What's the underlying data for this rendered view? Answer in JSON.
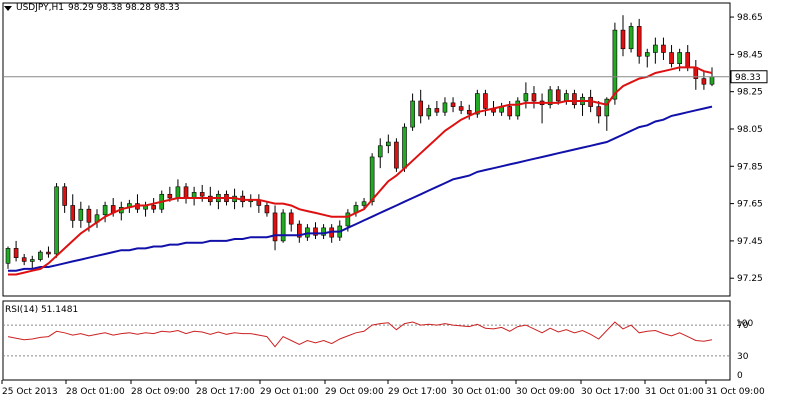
{
  "header": {
    "symbol": "USDJPY,H1",
    "ohlc": "98.29 98.38 98.28 98.33"
  },
  "price_axis": {
    "ticks": [
      "98.65",
      "98.45",
      "98.25",
      "98.05",
      "97.85",
      "97.65",
      "97.45",
      "97.25"
    ],
    "current_price_label": "98.33"
  },
  "rsi": {
    "title": "RSI(14) 51.1481",
    "ticks": [
      "70",
      "30",
      "0"
    ],
    "top_label": "100",
    "levels": [
      70,
      30
    ]
  },
  "time_axis": {
    "labels": [
      "25 Oct 2013",
      "28 Oct 01:00",
      "28 Oct 09:00",
      "28 Oct 17:00",
      "29 Oct 01:00",
      "29 Oct 09:00",
      "29 Oct 17:00",
      "30 Oct 01:00",
      "30 Oct 09:00",
      "30 Oct 17:00",
      "31 Oct 01:00",
      "31 Oct 09:00"
    ]
  },
  "colors": {
    "bull": "#22aa22",
    "bear": "#dd1111",
    "ema_fast": "#dd1111",
    "ema_slow": "#1111aa",
    "rsi_line": "#cc2222",
    "grid": "#888888"
  },
  "chart_data": {
    "type": "candlestick",
    "ylim": [
      97.16,
      98.72
    ],
    "current_price": 98.33,
    "candles": [
      [
        97.33,
        97.42,
        97.3,
        97.41
      ],
      [
        97.41,
        97.45,
        97.34,
        97.36
      ],
      [
        97.36,
        97.38,
        97.32,
        97.34
      ],
      [
        97.34,
        97.37,
        97.3,
        97.35
      ],
      [
        97.35,
        97.4,
        97.34,
        97.39
      ],
      [
        97.39,
        97.42,
        97.36,
        97.38
      ],
      [
        97.38,
        97.76,
        97.36,
        97.74
      ],
      [
        97.74,
        97.76,
        97.6,
        97.64
      ],
      [
        97.64,
        97.7,
        97.52,
        97.56
      ],
      [
        97.56,
        97.66,
        97.52,
        97.62
      ],
      [
        97.62,
        97.64,
        97.5,
        97.55
      ],
      [
        97.55,
        97.62,
        97.52,
        97.59
      ],
      [
        97.59,
        97.66,
        97.55,
        97.64
      ],
      [
        97.64,
        97.68,
        97.58,
        97.6
      ],
      [
        97.6,
        97.66,
        97.56,
        97.63
      ],
      [
        97.63,
        97.67,
        97.6,
        97.65
      ],
      [
        97.65,
        97.7,
        97.6,
        97.62
      ],
      [
        97.62,
        97.66,
        97.58,
        97.64
      ],
      [
        97.64,
        97.68,
        97.6,
        97.62
      ],
      [
        97.62,
        97.72,
        97.6,
        97.7
      ],
      [
        97.7,
        97.74,
        97.66,
        97.68
      ],
      [
        97.68,
        97.78,
        97.66,
        97.74
      ],
      [
        97.74,
        97.76,
        97.65,
        97.68
      ],
      [
        97.68,
        97.74,
        97.64,
        97.71
      ],
      [
        97.71,
        97.75,
        97.66,
        97.69
      ],
      [
        97.69,
        97.74,
        97.64,
        97.66
      ],
      [
        97.66,
        97.72,
        97.62,
        97.7
      ],
      [
        97.7,
        97.72,
        97.64,
        97.66
      ],
      [
        97.66,
        97.73,
        97.62,
        97.69
      ],
      [
        97.69,
        97.72,
        97.63,
        97.66
      ],
      [
        97.66,
        97.7,
        97.63,
        97.67
      ],
      [
        97.67,
        97.7,
        97.6,
        97.64
      ],
      [
        97.64,
        97.66,
        97.58,
        97.6
      ],
      [
        97.6,
        97.64,
        97.4,
        97.45
      ],
      [
        97.45,
        97.62,
        97.44,
        97.6
      ],
      [
        97.6,
        97.62,
        97.5,
        97.54
      ],
      [
        97.54,
        97.56,
        97.44,
        97.47
      ],
      [
        97.47,
        97.54,
        97.45,
        97.52
      ],
      [
        97.52,
        97.55,
        97.46,
        97.48
      ],
      [
        97.48,
        97.54,
        97.46,
        97.52
      ],
      [
        97.52,
        97.54,
        97.44,
        97.47
      ],
      [
        97.47,
        97.56,
        97.45,
        97.53
      ],
      [
        97.53,
        97.62,
        97.5,
        97.6
      ],
      [
        97.6,
        97.66,
        97.58,
        97.64
      ],
      [
        97.64,
        97.68,
        97.62,
        97.66
      ],
      [
        97.66,
        97.92,
        97.64,
        97.9
      ],
      [
        97.9,
        98.0,
        97.84,
        97.96
      ],
      [
        97.96,
        98.02,
        97.92,
        97.98
      ],
      [
        97.98,
        98.0,
        97.82,
        97.84
      ],
      [
        97.84,
        98.08,
        97.82,
        98.06
      ],
      [
        98.06,
        98.24,
        98.04,
        98.2
      ],
      [
        98.2,
        98.26,
        98.08,
        98.12
      ],
      [
        98.12,
        98.18,
        98.1,
        98.16
      ],
      [
        98.16,
        98.2,
        98.12,
        98.14
      ],
      [
        98.14,
        98.22,
        98.12,
        98.19
      ],
      [
        98.19,
        98.22,
        98.14,
        98.17
      ],
      [
        98.17,
        98.2,
        98.13,
        98.15
      ],
      [
        98.15,
        98.18,
        98.1,
        98.13
      ],
      [
        98.13,
        98.26,
        98.11,
        98.24
      ],
      [
        98.24,
        98.26,
        98.12,
        98.16
      ],
      [
        98.16,
        98.2,
        98.12,
        98.14
      ],
      [
        98.14,
        98.19,
        98.12,
        98.17
      ],
      [
        98.17,
        98.2,
        98.1,
        98.12
      ],
      [
        98.12,
        98.22,
        98.1,
        98.2
      ],
      [
        98.2,
        98.3,
        98.16,
        98.24
      ],
      [
        98.24,
        98.28,
        98.16,
        98.2
      ],
      [
        98.2,
        98.24,
        98.08,
        98.18
      ],
      [
        98.18,
        98.28,
        98.16,
        98.26
      ],
      [
        98.26,
        98.28,
        98.18,
        98.2
      ],
      [
        98.2,
        98.26,
        98.18,
        98.24
      ],
      [
        98.24,
        98.26,
        98.16,
        98.18
      ],
      [
        98.18,
        98.24,
        98.12,
        98.22
      ],
      [
        98.22,
        98.26,
        98.14,
        98.17
      ],
      [
        98.17,
        98.2,
        98.08,
        98.12
      ],
      [
        98.12,
        98.22,
        98.04,
        98.21
      ],
      [
        98.21,
        98.62,
        98.18,
        98.58
      ],
      [
        98.58,
        98.66,
        98.44,
        98.48
      ],
      [
        98.48,
        98.62,
        98.46,
        98.6
      ],
      [
        98.6,
        98.64,
        98.4,
        98.44
      ],
      [
        98.44,
        98.48,
        98.38,
        98.46
      ],
      [
        98.46,
        98.54,
        98.4,
        98.5
      ],
      [
        98.5,
        98.54,
        98.42,
        98.46
      ],
      [
        98.46,
        98.5,
        98.38,
        98.4
      ],
      [
        98.4,
        98.48,
        98.36,
        98.46
      ],
      [
        98.46,
        98.5,
        98.36,
        98.38
      ],
      [
        98.38,
        98.42,
        98.26,
        98.32
      ],
      [
        98.32,
        98.36,
        98.26,
        98.29
      ],
      [
        98.29,
        98.38,
        98.28,
        98.33
      ]
    ],
    "ema_fast": [
      97.27,
      97.27,
      97.28,
      97.29,
      97.3,
      97.33,
      97.37,
      97.41,
      97.45,
      97.49,
      97.52,
      97.55,
      97.58,
      97.6,
      97.62,
      97.63,
      97.64,
      97.64,
      97.65,
      97.66,
      97.67,
      97.68,
      97.68,
      97.68,
      97.68,
      97.68,
      97.68,
      97.68,
      97.68,
      97.67,
      97.67,
      97.67,
      97.66,
      97.65,
      97.65,
      97.64,
      97.62,
      97.61,
      97.6,
      97.59,
      97.58,
      97.58,
      97.58,
      97.6,
      97.62,
      97.67,
      97.72,
      97.77,
      97.8,
      97.84,
      97.88,
      97.92,
      97.96,
      98.0,
      98.04,
      98.07,
      98.1,
      98.12,
      98.14,
      98.15,
      98.16,
      98.17,
      98.18,
      98.18,
      98.19,
      98.19,
      98.19,
      98.19,
      98.19,
      98.2,
      98.2,
      98.2,
      98.2,
      98.19,
      98.18,
      98.24,
      98.28,
      98.3,
      98.32,
      98.33,
      98.35,
      98.36,
      98.37,
      98.38,
      98.38,
      98.38,
      98.36,
      98.35
    ],
    "ema_slow": [
      97.29,
      97.29,
      97.3,
      97.3,
      97.31,
      97.31,
      97.32,
      97.33,
      97.34,
      97.35,
      97.36,
      97.37,
      97.38,
      97.39,
      97.4,
      97.4,
      97.41,
      97.41,
      97.42,
      97.42,
      97.43,
      97.43,
      97.44,
      97.44,
      97.44,
      97.45,
      97.45,
      97.45,
      97.46,
      97.46,
      97.47,
      97.47,
      97.47,
      97.48,
      97.48,
      97.48,
      97.48,
      97.49,
      97.49,
      97.49,
      97.5,
      97.5,
      97.52,
      97.54,
      97.56,
      97.58,
      97.6,
      97.62,
      97.64,
      97.66,
      97.68,
      97.7,
      97.72,
      97.74,
      97.76,
      97.78,
      97.79,
      97.8,
      97.82,
      97.83,
      97.84,
      97.85,
      97.86,
      97.87,
      97.88,
      97.89,
      97.9,
      97.91,
      97.92,
      97.93,
      97.94,
      97.95,
      97.96,
      97.97,
      97.98,
      98.0,
      98.02,
      98.04,
      98.06,
      98.07,
      98.09,
      98.1,
      98.12,
      98.13,
      98.14,
      98.15,
      98.16,
      98.17
    ],
    "rsi_values": [
      55,
      53,
      51,
      52,
      54,
      55,
      62,
      60,
      57,
      59,
      56,
      58,
      60,
      57,
      59,
      60,
      58,
      60,
      59,
      62,
      61,
      63,
      59,
      62,
      61,
      58,
      61,
      58,
      60,
      59,
      59,
      57,
      55,
      42,
      55,
      50,
      45,
      50,
      47,
      50,
      46,
      52,
      56,
      60,
      62,
      70,
      72,
      73,
      64,
      72,
      74,
      70,
      71,
      70,
      72,
      70,
      69,
      68,
      71,
      66,
      65,
      67,
      62,
      68,
      70,
      65,
      60,
      66,
      61,
      64,
      60,
      63,
      58,
      52,
      63,
      74,
      65,
      70,
      60,
      62,
      63,
      59,
      56,
      60,
      55,
      50,
      49,
      51
    ]
  }
}
